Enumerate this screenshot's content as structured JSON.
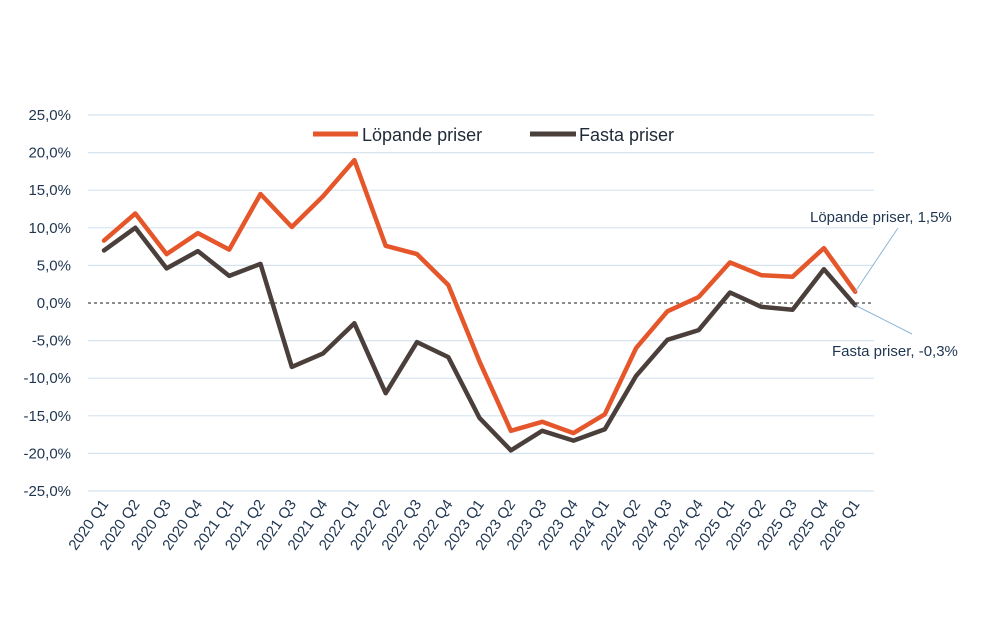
{
  "chart_data": {
    "type": "line",
    "title": "",
    "xlabel": "",
    "ylabel": "",
    "ylim": [
      -25,
      25
    ],
    "y_ticks": [
      25,
      20,
      15,
      10,
      5,
      0,
      -5,
      -10,
      -15,
      -20,
      -25
    ],
    "y_tick_labels": [
      "25,0%",
      "20,0%",
      "15,0%",
      "10,0%",
      "5,0%",
      "0,0%",
      "-5,0%",
      "-10,0%",
      "-15,0%",
      "-20,0%",
      "-25,0%"
    ],
    "grid": true,
    "zero_line": "dashed",
    "legend_position": "top-center",
    "categories": [
      "2020 Q1",
      "2020 Q2",
      "2020 Q3",
      "2020 Q4",
      "2021 Q1",
      "2021 Q2",
      "2021 Q3",
      "2021 Q4",
      "2022 Q1",
      "2022 Q2",
      "2022 Q3",
      "2022 Q4",
      "2023 Q1",
      "2023 Q2",
      "2023 Q3",
      "2023 Q4",
      "2024 Q1",
      "2024 Q2",
      "2024 Q3",
      "2024 Q4",
      "2025 Q1",
      "2025 Q2",
      "2025 Q3",
      "2025 Q4",
      "2026 Q1"
    ],
    "series": [
      {
        "name": "Löpande priser",
        "color": "#e5562a",
        "values": [
          8.3,
          11.9,
          6.5,
          9.3,
          7.1,
          14.5,
          10.1,
          14.2,
          19.0,
          7.6,
          6.5,
          2.4,
          -7.8,
          -17.0,
          -15.8,
          -17.3,
          -14.8,
          -6.0,
          -1.1,
          0.8,
          5.4,
          3.7,
          3.5,
          7.3,
          1.5
        ]
      },
      {
        "name": "Fasta priser",
        "color": "#4a3f3a",
        "values": [
          7.0,
          10.0,
          4.6,
          6.9,
          3.6,
          5.2,
          -8.5,
          -6.7,
          -2.7,
          -12.0,
          -5.2,
          -7.2,
          -15.3,
          -19.6,
          -17.0,
          -18.3,
          -16.8,
          -9.7,
          -4.9,
          -3.6,
          1.4,
          -0.5,
          -0.9,
          4.5,
          -0.3
        ]
      }
    ],
    "annotations": [
      {
        "text": "Löpande priser, 1,5%",
        "series": 0,
        "point": "2026 Q1"
      },
      {
        "text": "Fasta priser, -0,3%",
        "series": 1,
        "point": "2026 Q1"
      }
    ]
  }
}
